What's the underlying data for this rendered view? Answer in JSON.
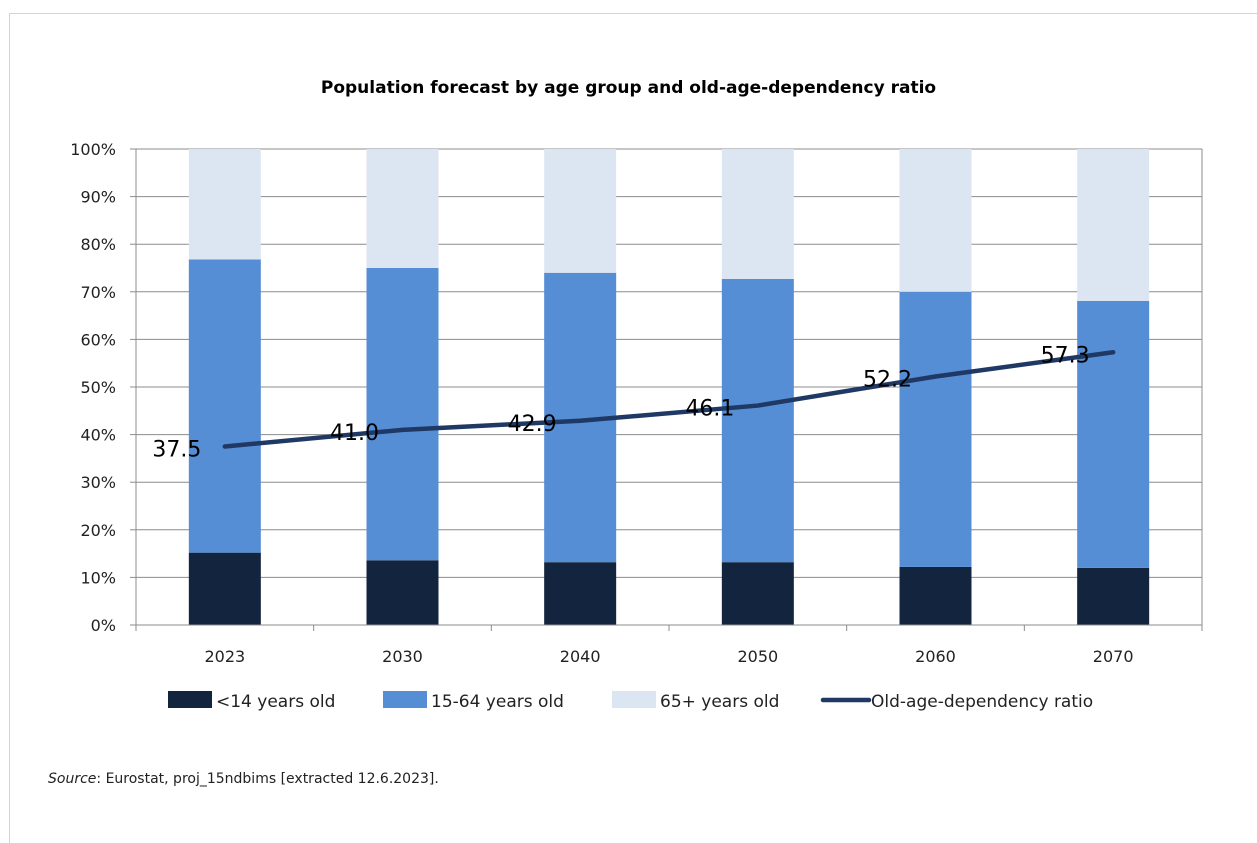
{
  "chart_data": {
    "type": "bar",
    "stacked": true,
    "title": "Population forecast by age group and old-age-dependency ratio",
    "categories": [
      "2023",
      "2030",
      "2040",
      "2050",
      "2060",
      "2070"
    ],
    "y_axis": {
      "range": [
        0,
        100
      ],
      "step": 10,
      "tick_suffix": "%",
      "tick_labels": [
        "0%",
        "10%",
        "20%",
        "30%",
        "40%",
        "50%",
        "60%",
        "70%",
        "80%",
        "90%",
        "100%"
      ],
      "gridlines": true
    },
    "series": [
      {
        "name": "<14 years old",
        "type": "bar",
        "color": "#13243f",
        "values": [
          15.2,
          13.6,
          13.2,
          13.2,
          12.2,
          12.0
        ]
      },
      {
        "name": "15-64 years old",
        "type": "bar",
        "color": "#558ed5",
        "values": [
          61.6,
          61.4,
          60.8,
          59.5,
          57.8,
          56.1
        ]
      },
      {
        "name": "65+ years old",
        "type": "bar",
        "color": "#dce6f2",
        "values": [
          23.2,
          25.0,
          26.0,
          27.3,
          30.0,
          31.9
        ]
      },
      {
        "name": "Old-age-dependency ratio",
        "type": "line",
        "color": "#1f3864",
        "values": [
          37.5,
          41.0,
          42.9,
          46.1,
          52.2,
          57.3
        ],
        "data_labels": [
          "37.5",
          "41.0",
          "42.9",
          "46.1",
          "52.2",
          "57.3"
        ]
      }
    ],
    "legend": "bottom"
  },
  "source": {
    "label": "Source",
    "text": ": Eurostat, proj_15ndbims [extracted 12.6.2023]."
  }
}
